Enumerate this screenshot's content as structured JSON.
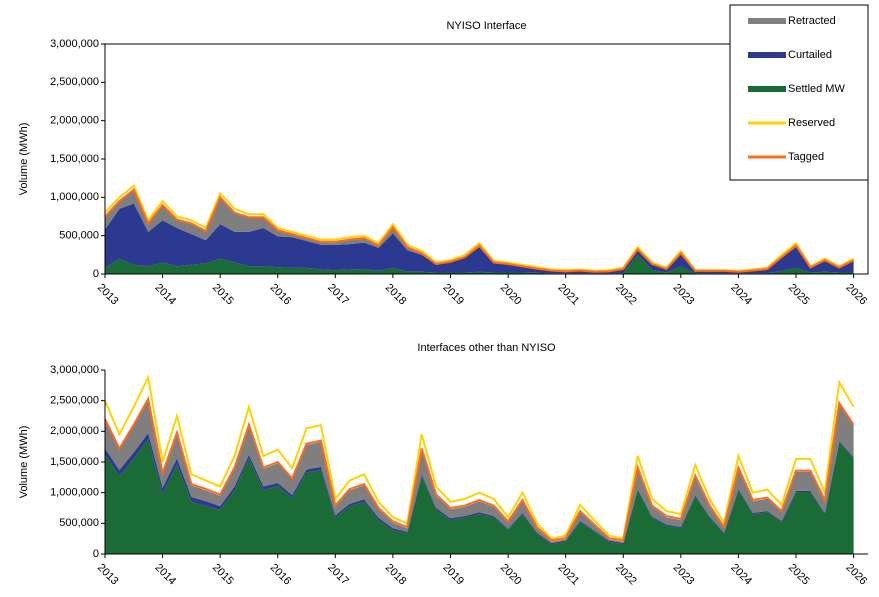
{
  "chart_data": [
    {
      "type": "area",
      "title": "NYISO Interface",
      "y_label": "Volume (MWh)",
      "frame": true,
      "legend": "upper right",
      "x": [
        2013,
        2013.25,
        2013.5,
        2013.75,
        2014,
        2014.25,
        2014.5,
        2014.75,
        2015,
        2015.25,
        2015.5,
        2015.75,
        2016,
        2016.25,
        2016.5,
        2016.75,
        2017,
        2017.25,
        2017.5,
        2017.75,
        2018,
        2018.25,
        2018.5,
        2018.75,
        2019,
        2019.25,
        2019.5,
        2019.75,
        2020,
        2020.25,
        2020.5,
        2020.75,
        2021,
        2021.25,
        2021.5,
        2021.75,
        2022,
        2022.25,
        2022.5,
        2022.75,
        2023,
        2023.25,
        2023.5,
        2023.75,
        2024,
        2024.25,
        2024.5,
        2024.75,
        2025,
        2025.25,
        2025.5,
        2025.75,
        2026
      ],
      "xlim": [
        2013,
        2026.25
      ],
      "xticks": [
        2013,
        2014,
        2015,
        2016,
        2017,
        2018,
        2019,
        2020,
        2021,
        2022,
        2023,
        2024,
        2025,
        2026
      ],
      "ylim": [
        0,
        3000000
      ],
      "yticks": [
        0,
        {
          "value": 500000,
          "label": "500,000"
        },
        {
          "value": 1000000,
          "label": "1,000,000"
        },
        {
          "value": 1500000,
          "label": "1,500,000"
        },
        {
          "value": 2000000,
          "label": "2,000,000"
        },
        {
          "value": 2500000,
          "label": "2,500,000"
        },
        {
          "value": 3000000,
          "label": "3,000,000"
        }
      ],
      "series": [
        {
          "name": "Retracted",
          "style": "area",
          "color": "#7f7f7f",
          "values": [
            160000,
            90000,
            170000,
            100000,
            190000,
            100000,
            130000,
            110000,
            340000,
            240000,
            180000,
            130000,
            70000,
            30000,
            30000,
            30000,
            30000,
            50000,
            50000,
            20000,
            70000,
            30000,
            10000,
            5000,
            5000,
            5000,
            10000,
            5000,
            5000,
            3000,
            3000,
            3000,
            3000,
            3000,
            3000,
            3000,
            3000,
            5000,
            5000,
            3000,
            5000,
            3000,
            3000,
            3000,
            3000,
            3000,
            3000,
            5000,
            10000,
            3000,
            5000,
            3000,
            5000
          ]
        },
        {
          "name": "Curtailed",
          "style": "area",
          "color": "#2b3990",
          "values": [
            500000,
            650000,
            800000,
            450000,
            550000,
            500000,
            400000,
            300000,
            450000,
            400000,
            450000,
            500000,
            400000,
            400000,
            350000,
            320000,
            330000,
            330000,
            350000,
            300000,
            450000,
            280000,
            220000,
            100000,
            130000,
            190000,
            320000,
            120000,
            100000,
            75000,
            50000,
            30000,
            20000,
            30000,
            15000,
            20000,
            50000,
            60000,
            70000,
            40000,
            160000,
            25000,
            25000,
            25000,
            15000,
            30000,
            50000,
            170000,
            270000,
            60000,
            140000,
            60000,
            150000
          ]
        },
        {
          "name": "Settled MW",
          "style": "area",
          "color": "#1a6b35",
          "values": [
            80000,
            200000,
            120000,
            100000,
            150000,
            100000,
            120000,
            140000,
            200000,
            150000,
            100000,
            100000,
            90000,
            80000,
            80000,
            60000,
            50000,
            60000,
            60000,
            40000,
            80000,
            30000,
            30000,
            20000,
            20000,
            20000,
            30000,
            20000,
            20000,
            20000,
            15000,
            10000,
            10000,
            10000,
            10000,
            10000,
            10000,
            250000,
            50000,
            20000,
            100000,
            10000,
            10000,
            10000,
            10000,
            10000,
            10000,
            40000,
            80000,
            20000,
            30000,
            20000,
            20000
          ]
        },
        {
          "name": "Reserved",
          "style": "line",
          "color": "#ffd200",
          "values": [
            800000,
            1000000,
            1150000,
            700000,
            950000,
            750000,
            700000,
            600000,
            1050000,
            850000,
            780000,
            780000,
            600000,
            550000,
            500000,
            450000,
            450000,
            480000,
            500000,
            400000,
            650000,
            380000,
            300000,
            150000,
            180000,
            250000,
            400000,
            170000,
            150000,
            120000,
            90000,
            60000,
            50000,
            60000,
            40000,
            50000,
            80000,
            350000,
            150000,
            80000,
            300000,
            50000,
            50000,
            50000,
            40000,
            60000,
            80000,
            250000,
            400000,
            100000,
            200000,
            100000,
            200000
          ]
        },
        {
          "name": "Tagged",
          "style": "line",
          "color": "#ff6a21",
          "values": [
            750000,
            950000,
            1100000,
            660000,
            900000,
            710000,
            660000,
            560000,
            1000000,
            800000,
            740000,
            740000,
            570000,
            520000,
            470000,
            420000,
            420000,
            450000,
            470000,
            370000,
            610000,
            350000,
            270000,
            130000,
            160000,
            220000,
            370000,
            150000,
            130000,
            100000,
            70000,
            45000,
            35000,
            45000,
            30000,
            35000,
            65000,
            320000,
            130000,
            65000,
            270000,
            40000,
            40000,
            40000,
            30000,
            45000,
            65000,
            220000,
            370000,
            85000,
            180000,
            85000,
            180000
          ]
        }
      ]
    },
    {
      "type": "area",
      "title": "Interfaces other than NYISO",
      "y_label": "Volume (MWh)",
      "frame": false,
      "x": [
        2013,
        2013.25,
        2013.5,
        2013.75,
        2014,
        2014.25,
        2014.5,
        2014.75,
        2015,
        2015.25,
        2015.5,
        2015.75,
        2016,
        2016.25,
        2016.5,
        2016.75,
        2017,
        2017.25,
        2017.5,
        2017.75,
        2018,
        2018.25,
        2018.5,
        2018.75,
        2019,
        2019.25,
        2019.5,
        2019.75,
        2020,
        2020.25,
        2020.5,
        2020.75,
        2021,
        2021.25,
        2021.5,
        2021.75,
        2022,
        2022.25,
        2022.5,
        2022.75,
        2023,
        2023.25,
        2023.5,
        2023.75,
        2024,
        2024.25,
        2024.5,
        2024.75,
        2025,
        2025.25,
        2025.5,
        2025.75,
        2026
      ],
      "xlim": [
        2013,
        2026.25
      ],
      "xticks": [
        2013,
        2014,
        2015,
        2016,
        2017,
        2018,
        2019,
        2020,
        2021,
        2022,
        2023,
        2024,
        2025,
        2026
      ],
      "ylim": [
        0,
        3000000
      ],
      "yticks": [
        0,
        {
          "value": 500000,
          "label": "500,000"
        },
        {
          "value": 1000000,
          "label": "1,000,000"
        },
        {
          "value": 1500000,
          "label": "1,500,000"
        },
        {
          "value": 2000000,
          "label": "2,000,000"
        },
        {
          "value": 2500000,
          "label": "2,500,000"
        },
        {
          "value": 3000000,
          "label": "3,000,000"
        }
      ],
      "series": [
        {
          "name": "Retracted",
          "style": "area",
          "color": "#7f7f7f",
          "values": [
            460000,
            330000,
            430000,
            540000,
            220000,
            400000,
            190000,
            180000,
            170000,
            290000,
            470000,
            290000,
            320000,
            250000,
            400000,
            410000,
            140000,
            220000,
            230000,
            140000,
            90000,
            60000,
            400000,
            200000,
            150000,
            150000,
            180000,
            150000,
            100000,
            190000,
            70000,
            20000,
            20000,
            140000,
            80000,
            20000,
            20000,
            330000,
            160000,
            120000,
            110000,
            300000,
            160000,
            70000,
            330000,
            190000,
            200000,
            140000,
            310000,
            310000,
            190000,
            600000,
            510000
          ]
        },
        {
          "name": "Curtailed",
          "style": "area",
          "color": "#2b3990",
          "values": [
            100000,
            100000,
            100000,
            100000,
            100000,
            100000,
            80000,
            80000,
            60000,
            60000,
            60000,
            60000,
            50000,
            50000,
            50000,
            50000,
            40000,
            40000,
            40000,
            40000,
            30000,
            30000,
            30000,
            30000,
            30000,
            30000,
            30000,
            30000,
            20000,
            20000,
            20000,
            20000,
            20000,
            20000,
            20000,
            20000,
            20000,
            20000,
            20000,
            20000,
            20000,
            20000,
            20000,
            20000,
            20000,
            20000,
            20000,
            20000,
            20000,
            20000,
            20000,
            20000,
            20000
          ]
        },
        {
          "name": "Settled MW",
          "style": "area",
          "color": "#1a6b35",
          "values": [
            1620000,
            1270000,
            1560000,
            1870000,
            980000,
            1460000,
            850000,
            780000,
            720000,
            1040000,
            1560000,
            1040000,
            1110000,
            910000,
            1330000,
            1370000,
            590000,
            780000,
            850000,
            550000,
            390000,
            330000,
            1270000,
            720000,
            550000,
            590000,
            650000,
            590000,
            390000,
            650000,
            330000,
            160000,
            200000,
            520000,
            360000,
            200000,
            160000,
            1040000,
            590000,
            460000,
            420000,
            940000,
            590000,
            330000,
            1040000,
            650000,
            680000,
            520000,
            1010000,
            1010000,
            650000,
            1820000,
            1560000
          ]
        },
        {
          "name": "Reserved",
          "style": "line",
          "color": "#ffd200",
          "values": [
            2500000,
            1950000,
            2400000,
            2880000,
            1500000,
            2250000,
            1300000,
            1200000,
            1100000,
            1600000,
            2400000,
            1600000,
            1700000,
            1400000,
            2050000,
            2100000,
            900000,
            1200000,
            1300000,
            850000,
            600000,
            500000,
            1950000,
            1100000,
            850000,
            900000,
            1000000,
            900000,
            600000,
            1000000,
            500000,
            250000,
            300000,
            800000,
            550000,
            300000,
            250000,
            1600000,
            900000,
            700000,
            650000,
            1450000,
            900000,
            500000,
            1600000,
            1000000,
            1050000,
            800000,
            1550000,
            1550000,
            1000000,
            2800000,
            2400000
          ]
        },
        {
          "name": "Tagged",
          "style": "line",
          "color": "#ff6a21",
          "values": [
            2200000,
            1720000,
            2110000,
            2530000,
            1320000,
            1980000,
            1140000,
            1060000,
            970000,
            1410000,
            2110000,
            1410000,
            1500000,
            1230000,
            1800000,
            1850000,
            790000,
            1060000,
            1140000,
            750000,
            530000,
            440000,
            1720000,
            970000,
            750000,
            790000,
            880000,
            790000,
            530000,
            880000,
            440000,
            220000,
            260000,
            700000,
            480000,
            260000,
            220000,
            1410000,
            790000,
            620000,
            570000,
            1280000,
            790000,
            440000,
            1410000,
            880000,
            920000,
            700000,
            1360000,
            1360000,
            880000,
            2460000,
            2110000
          ]
        }
      ]
    }
  ]
}
